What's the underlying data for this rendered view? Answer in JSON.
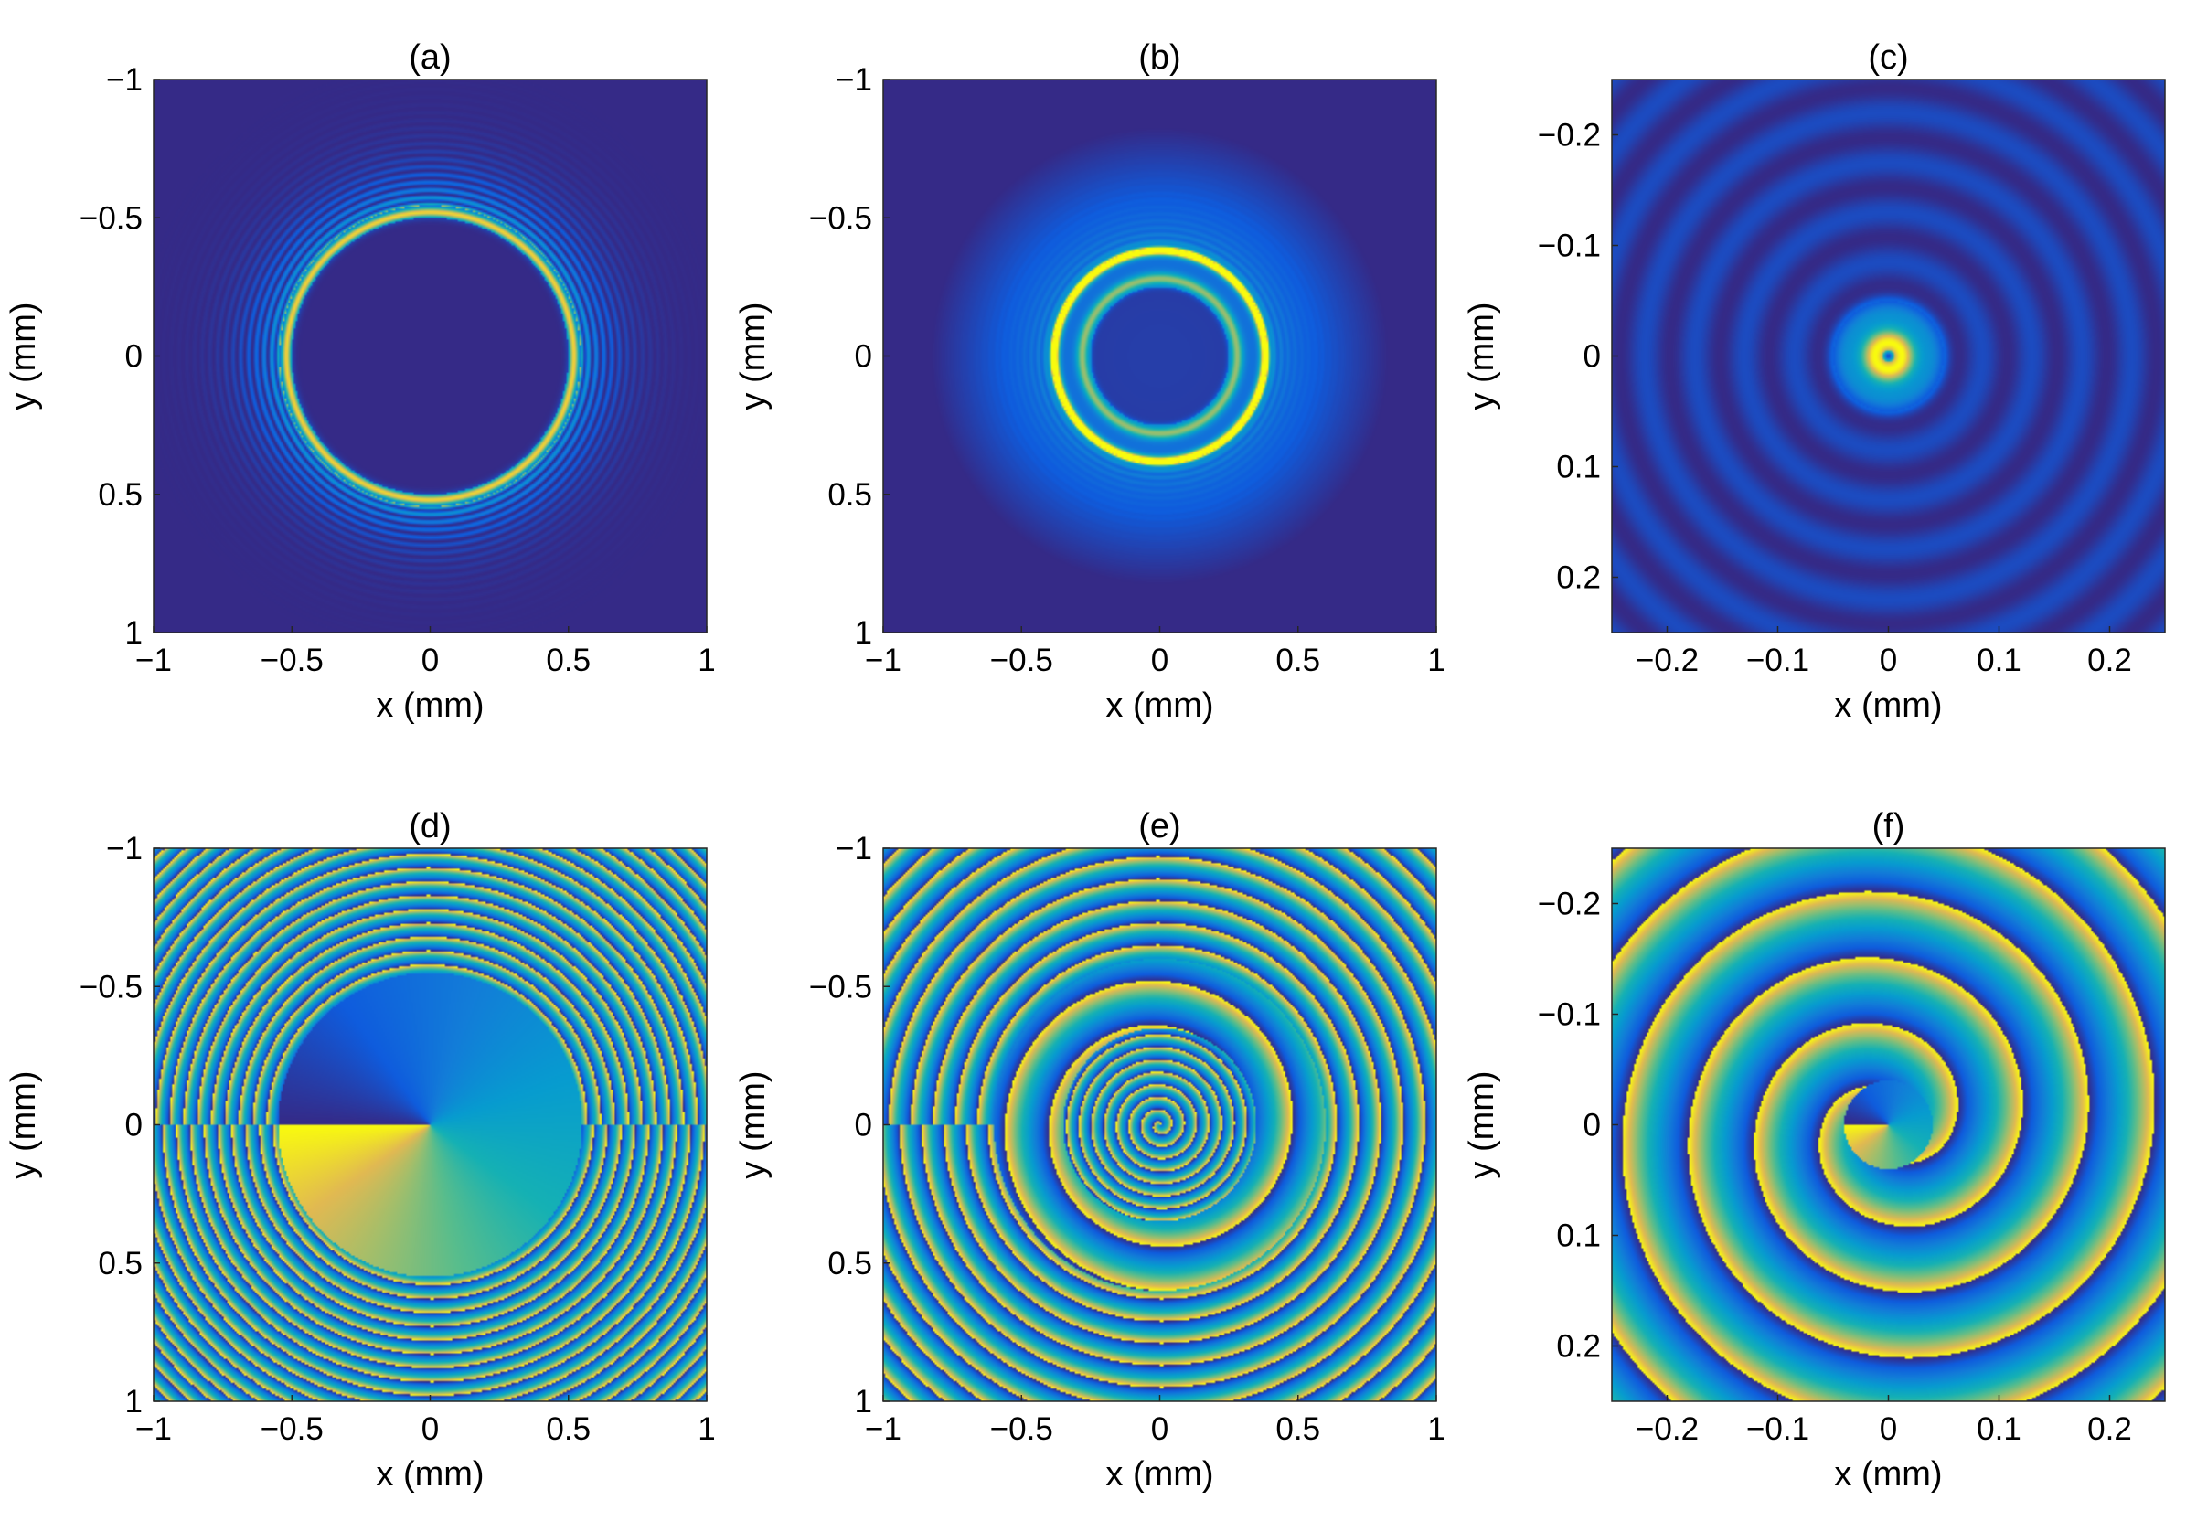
{
  "figure": {
    "panels": [
      {
        "id": "a",
        "title": "(a)",
        "kind": "intensity",
        "xlabel": "x (mm)",
        "ylabel": "y (mm)",
        "xlim": [
          -1,
          1
        ],
        "ylim": [
          -1,
          1
        ],
        "y_reversed": true,
        "xticks": [
          -1,
          -0.5,
          0,
          0.5,
          1
        ],
        "yticks": [
          -1,
          -0.5,
          0,
          0.5,
          1
        ],
        "xtick_labels": [
          "−1",
          "−0.5",
          "0",
          "0.5",
          "1"
        ],
        "ytick_labels": [
          "−1",
          "−0.5",
          "0",
          "0.5",
          "1"
        ]
      },
      {
        "id": "b",
        "title": "(b)",
        "kind": "intensity",
        "xlabel": "x (mm)",
        "ylabel": "y (mm)",
        "xlim": [
          -1,
          1
        ],
        "ylim": [
          -1,
          1
        ],
        "y_reversed": true,
        "xticks": [
          -1,
          -0.5,
          0,
          0.5,
          1
        ],
        "yticks": [
          -1,
          -0.5,
          0,
          0.5,
          1
        ],
        "xtick_labels": [
          "−1",
          "−0.5",
          "0",
          "0.5",
          "1"
        ],
        "ytick_labels": [
          "−1",
          "−0.5",
          "0",
          "0.5",
          "1"
        ]
      },
      {
        "id": "c",
        "title": "(c)",
        "kind": "intensity",
        "xlabel": "x (mm)",
        "ylabel": "y (mm)",
        "xlim": [
          -0.25,
          0.25
        ],
        "ylim": [
          -0.25,
          0.25
        ],
        "y_reversed": true,
        "xticks": [
          -0.2,
          -0.1,
          0,
          0.1,
          0.2
        ],
        "yticks": [
          -0.2,
          -0.1,
          0,
          0.1,
          0.2
        ],
        "xtick_labels": [
          "−0.2",
          "−0.1",
          "0",
          "0.1",
          "0.2"
        ],
        "ytick_labels": [
          "−0.2",
          "−0.1",
          "0",
          "0.1",
          "0.2"
        ]
      },
      {
        "id": "d",
        "title": "(d)",
        "kind": "phase",
        "xlabel": "x (mm)",
        "ylabel": "y (mm)",
        "xlim": [
          -1,
          1
        ],
        "ylim": [
          -1,
          1
        ],
        "y_reversed": true,
        "xticks": [
          -1,
          -0.5,
          0,
          0.5,
          1
        ],
        "yticks": [
          -1,
          -0.5,
          0,
          0.5,
          1
        ],
        "xtick_labels": [
          "−1",
          "−0.5",
          "0",
          "0.5",
          "1"
        ],
        "ytick_labels": [
          "−1",
          "−0.5",
          "0",
          "0.5",
          "1"
        ]
      },
      {
        "id": "e",
        "title": "(e)",
        "kind": "phase",
        "xlabel": "x (mm)",
        "ylabel": "y (mm)",
        "xlim": [
          -1,
          1
        ],
        "ylim": [
          -1,
          1
        ],
        "y_reversed": true,
        "xticks": [
          -1,
          -0.5,
          0,
          0.5,
          1
        ],
        "yticks": [
          -1,
          -0.5,
          0,
          0.5,
          1
        ],
        "xtick_labels": [
          "−1",
          "−0.5",
          "0",
          "0.5",
          "1"
        ],
        "ytick_labels": [
          "−1",
          "−0.5",
          "0",
          "0.5",
          "1"
        ]
      },
      {
        "id": "f",
        "title": "(f)",
        "kind": "phase",
        "xlabel": "x (mm)",
        "ylabel": "y (mm)",
        "xlim": [
          -0.25,
          0.25
        ],
        "ylim": [
          -0.25,
          0.25
        ],
        "y_reversed": true,
        "xticks": [
          -0.2,
          -0.1,
          0,
          0.1,
          0.2
        ],
        "yticks": [
          -0.2,
          -0.1,
          0,
          0.1,
          0.2
        ],
        "xtick_labels": [
          "−0.2",
          "−0.1",
          "0",
          "0.1",
          "0.2"
        ],
        "ytick_labels": [
          "−0.2",
          "−0.1",
          "0",
          "0.1",
          "0.2"
        ]
      }
    ]
  },
  "chart_data": [
    {
      "type": "heatmap",
      "panel": "(a)",
      "title": "(a)",
      "xlabel": "x (mm)",
      "ylabel": "y (mm)",
      "xlim": [
        -1,
        1
      ],
      "ylim": [
        -1,
        1
      ],
      "colormap": "parula",
      "features": {
        "bright_ring_radius_mm": 0.52,
        "dark_core_radius_mm": 0.5,
        "outer_fringes": true
      }
    },
    {
      "type": "heatmap",
      "panel": "(b)",
      "title": "(b)",
      "xlabel": "x (mm)",
      "ylabel": "y (mm)",
      "xlim": [
        -1,
        1
      ],
      "ylim": [
        -1,
        1
      ],
      "colormap": "parula",
      "features": {
        "bright_ring_radii_mm": [
          0.38,
          0.28
        ],
        "halo_radius_mm": 0.8
      }
    },
    {
      "type": "heatmap",
      "panel": "(c)",
      "title": "(c)",
      "xlabel": "x (mm)",
      "ylabel": "y (mm)",
      "xlim": [
        -0.25,
        0.25
      ],
      "ylim": [
        -0.25,
        0.25
      ],
      "colormap": "parula",
      "features": {
        "peak_ring_radius_mm": 0.012,
        "faint_ring_spacing_mm": 0.045
      }
    },
    {
      "type": "heatmap",
      "panel": "(d)",
      "title": "(d)",
      "xlabel": "x (mm)",
      "ylabel": "y (mm)",
      "xlim": [
        -1,
        1
      ],
      "ylim": [
        -1,
        1
      ],
      "colormap": "parula",
      "features": {
        "vortex_disk_radius_mm": 0.55,
        "topological_charge": 1,
        "outer_ring_spacing_mm": 0.05
      }
    },
    {
      "type": "heatmap",
      "panel": "(e)",
      "title": "(e)",
      "xlabel": "x (mm)",
      "ylabel": "y (mm)",
      "xlim": [
        -1,
        1
      ],
      "ylim": [
        -1,
        1
      ],
      "colormap": "parula",
      "features": {
        "inner_spiral_radius_mm": 0.35,
        "outer_ring_spacing_mm": 0.08
      }
    },
    {
      "type": "heatmap",
      "panel": "(f)",
      "title": "(f)",
      "xlabel": "x (mm)",
      "ylabel": "y (mm)",
      "xlim": [
        -0.25,
        0.25
      ],
      "ylim": [
        -0.25,
        0.25
      ],
      "colormap": "parula",
      "features": {
        "spiral_arms": 2,
        "ring_spacing_mm": 0.06
      }
    }
  ]
}
